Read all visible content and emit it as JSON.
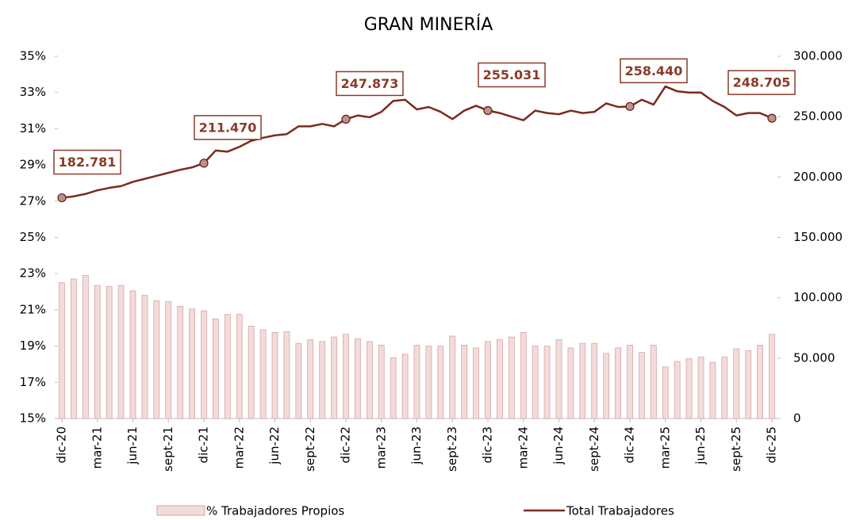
{
  "chart_data": {
    "type": "bar_line",
    "title": "GRAN MINERÍA",
    "categories": [
      "dic-20",
      null,
      null,
      "mar-21",
      null,
      null,
      "jun-21",
      null,
      null,
      "sept-21",
      null,
      null,
      "dic-21",
      null,
      null,
      "mar-22",
      null,
      null,
      "jun-22",
      null,
      null,
      "sept-22",
      null,
      null,
      "dic-22",
      null,
      null,
      "mar-23",
      null,
      null,
      "jun-23",
      null,
      null,
      "sept-23",
      null,
      null,
      "dic-23",
      null,
      null,
      "mar-24",
      null,
      null,
      "jun-24",
      null,
      null,
      "sept-24",
      null,
      null,
      "dic-24",
      null,
      null,
      "mar-25",
      null,
      null,
      "jun-25",
      null,
      null,
      "sept-25",
      null,
      null,
      "dic-25"
    ],
    "series": [
      {
        "name": "% Trabajadores Propios",
        "type": "bar",
        "color": "#f2dcdb",
        "stroke": "#d6a6a4",
        "values": [
          22.5,
          22.7,
          22.9,
          22.35,
          22.3,
          22.35,
          22.05,
          21.8,
          21.5,
          21.45,
          21.2,
          21.05,
          20.95,
          20.5,
          20.75,
          20.75,
          20.1,
          19.9,
          19.75,
          19.8,
          19.15,
          19.35,
          19.25,
          19.5,
          19.65,
          19.4,
          19.25,
          19.05,
          18.35,
          18.55,
          19.05,
          19.0,
          19.0,
          19.55,
          19.05,
          18.9,
          19.25,
          19.35,
          19.5,
          19.75,
          19.0,
          19.0,
          19.35,
          18.9,
          19.15,
          19.15,
          18.6,
          18.9,
          19.05,
          18.65,
          19.05,
          17.85,
          18.15,
          18.3,
          18.4,
          18.1,
          18.4,
          18.85,
          18.75,
          19.05,
          19.65
        ]
      },
      {
        "name": "Total Trabajadores",
        "type": "line",
        "axis": "y2",
        "color": "#7b2a1e",
        "values": [
          182781,
          184000,
          186000,
          189000,
          191000,
          192500,
          196000,
          198500,
          201000,
          203500,
          206000,
          208000,
          211470,
          222000,
          221000,
          225000,
          230000,
          232500,
          234500,
          235500,
          242000,
          242000,
          244000,
          242000,
          247873,
          251000,
          249500,
          254000,
          263000,
          264000,
          256000,
          258000,
          254000,
          248000,
          255000,
          259000,
          255031,
          253000,
          250000,
          247000,
          255000,
          253000,
          252000,
          255000,
          253000,
          254000,
          261000,
          258000,
          258440,
          264000,
          260000,
          275000,
          271000,
          270000,
          270000,
          263000,
          258000,
          251000,
          253000,
          253000,
          248705
        ],
        "value_labels": [
          "182.781",
          null,
          null,
          null,
          null,
          null,
          null,
          null,
          null,
          null,
          null,
          null,
          "211.470",
          null,
          null,
          null,
          null,
          null,
          null,
          null,
          null,
          null,
          null,
          null,
          "247.873",
          null,
          null,
          null,
          null,
          null,
          null,
          null,
          null,
          null,
          null,
          null,
          "255.031",
          null,
          null,
          null,
          null,
          null,
          null,
          null,
          null,
          null,
          null,
          null,
          "258.440",
          null,
          null,
          null,
          null,
          null,
          null,
          null,
          null,
          null,
          null,
          null,
          "248.705"
        ]
      }
    ],
    "ylim": [
      15,
      35
    ],
    "yticks": [
      {
        "value": 15,
        "label": "15%"
      },
      {
        "value": 17,
        "label": "17%"
      },
      {
        "value": 19,
        "label": "19%"
      },
      {
        "value": 21,
        "label": "21%"
      },
      {
        "value": 23,
        "label": "23%"
      },
      {
        "value": 25,
        "label": "25%"
      },
      {
        "value": 27,
        "label": "27%"
      },
      {
        "value": 29,
        "label": "29%"
      },
      {
        "value": 31,
        "label": "31%"
      },
      {
        "value": 33,
        "label": "33%"
      },
      {
        "value": 35,
        "label": "35%"
      }
    ],
    "y2lim": [
      0,
      300000
    ],
    "y2ticks": [
      0,
      {
        "value": 50000,
        "label": "50.000"
      },
      {
        "value": 100000,
        "label": "100.000"
      },
      {
        "value": 150000,
        "label": "150.000"
      },
      {
        "value": 200000,
        "label": "200.000"
      },
      {
        "value": 250000,
        "label": "250.000"
      },
      {
        "value": 300000,
        "label": "300.000"
      }
    ],
    "legend": "bottom"
  }
}
